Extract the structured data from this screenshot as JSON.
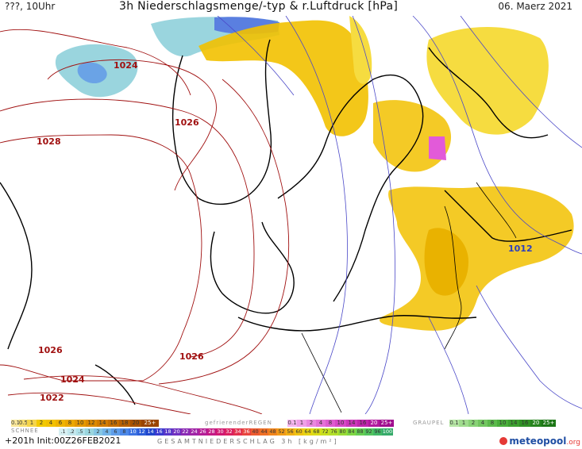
{
  "header": {
    "left": "???, 10Uhr",
    "title": "3h Niederschlagsmenge/-typ & r.Luftdruck [hPa]",
    "date": "06. Maerz 2021"
  },
  "isobars": [
    {
      "value": "1024",
      "color": "#a01010"
    },
    {
      "value": "1026",
      "color": "#a01010"
    },
    {
      "value": "1028",
      "color": "#a01010"
    },
    {
      "value": "1026",
      "color": "#a01010"
    },
    {
      "value": "1026",
      "color": "#a01010"
    },
    {
      "value": "1024",
      "color": "#a01010"
    },
    {
      "value": "1022",
      "color": "#a01010"
    },
    {
      "value": "1012",
      "color": "#2b3fbf"
    }
  ],
  "legend": {
    "schnee_label": "SCHNEE",
    "gefrierender_label": "gefrierenderREGEN",
    "graupel_label": "GRAUPEL",
    "rain_scale": [
      "0.1",
      "0.5",
      "1",
      "2",
      "4",
      "6",
      "8",
      "10",
      "12",
      "14",
      "16",
      "18",
      "20",
      "25+"
    ],
    "gefrierender_scale": [
      "0.1",
      "1",
      "2",
      "4",
      "8",
      "10",
      "14",
      "16",
      "20",
      "25+"
    ],
    "graupel_scale": [
      "0.1",
      "1",
      "2",
      "4",
      "8",
      "10",
      "14",
      "16",
      "20",
      "25+"
    ],
    "snow_scale": [
      ".1",
      ".2",
      ".5",
      "1",
      "2",
      "4",
      "6",
      "8",
      "10",
      "12",
      "14",
      "16",
      "18",
      "20",
      "22",
      "24",
      "26",
      "28",
      "30",
      "32",
      "34",
      "36",
      "40",
      "44",
      "48",
      "52",
      "56",
      "60",
      "64",
      "68",
      "72",
      "76",
      "80",
      "84",
      "88",
      "92",
      "96",
      "100"
    ],
    "gesamt_label": "GESAMTNIEDERSCHLAG 3h [kg/m²]",
    "init_text": "+201h Init:00Z26FEB2021",
    "brand": "meteopool",
    "brand_tld": ".org"
  },
  "colors": {
    "rain": "#f2c100",
    "rain_light": "#f6dc40",
    "snow": "#8fd3df",
    "snow_dark": "#3b62d6",
    "freezing": "#e25ad9",
    "graupel": "#3da73d",
    "isobar_high": "#a01010",
    "isobar_low": "#4a48c8"
  }
}
